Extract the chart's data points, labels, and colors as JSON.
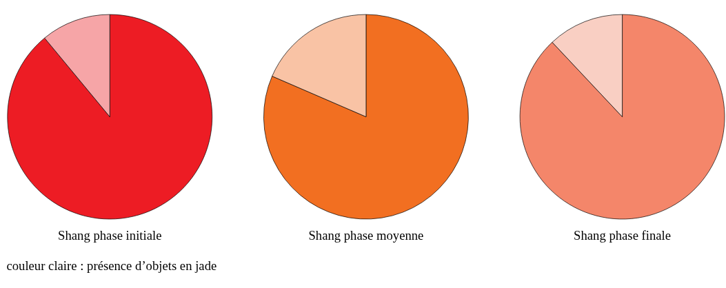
{
  "chart_data": [
    {
      "type": "pie",
      "title": "Shang phase initiale",
      "categories": [
        null,
        null
      ],
      "values": [
        89,
        11
      ],
      "colors": [
        "#ed1c24",
        "#f6a5a7"
      ],
      "annotations": [
        "couleur claire : présence d’objets en jade"
      ]
    },
    {
      "type": "pie",
      "title": "Shang phase moyenne",
      "categories": [
        null,
        null
      ],
      "values": [
        81.5,
        18.5
      ],
      "colors": [
        "#f26f21",
        "#f9c3a5"
      ]
    },
    {
      "type": "pie",
      "title": "Shang phase finale",
      "categories": [
        null,
        null
      ],
      "values": [
        88,
        12
      ],
      "colors": [
        "#f4866a",
        "#f9cfc3"
      ]
    }
  ]
}
